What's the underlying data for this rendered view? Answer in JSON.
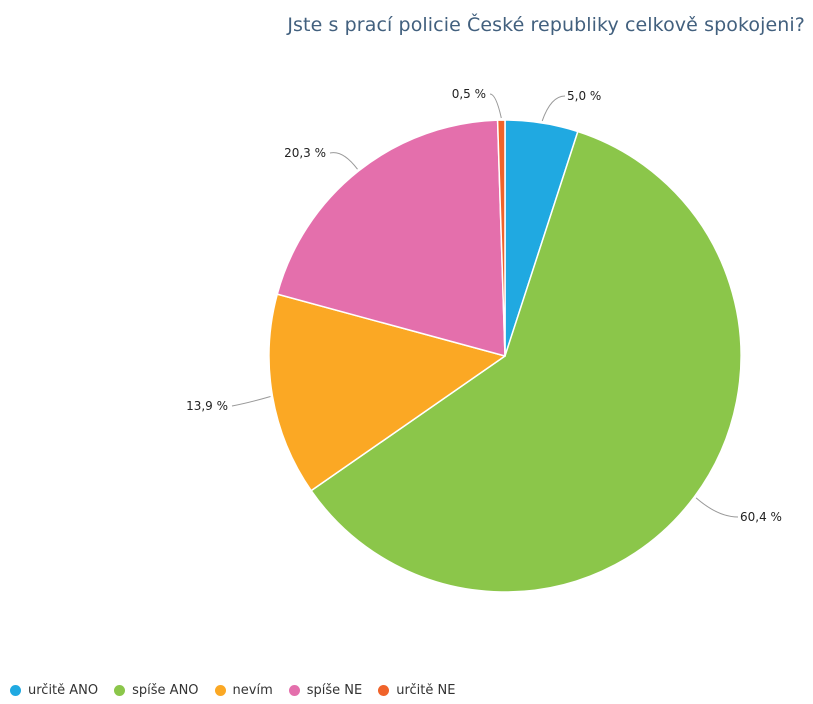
{
  "chart_data": {
    "type": "pie",
    "title": "Jste s prací policie České republiky celkově spokojeni?",
    "categories": [
      "určitě ANO",
      "spíše ANO",
      "nevím",
      "spíše NE",
      "určitě NE"
    ],
    "values": [
      5.0,
      60.4,
      13.9,
      20.3,
      0.5
    ],
    "data_labels": [
      "5,0 %",
      "60,4 %",
      "13,9 %",
      "20,3 %",
      "0,5 %"
    ],
    "colors": [
      "#20a9e1",
      "#8bc64a",
      "#fba824",
      "#e46fac",
      "#f0632a"
    ],
    "legend_position": "bottom-left"
  }
}
